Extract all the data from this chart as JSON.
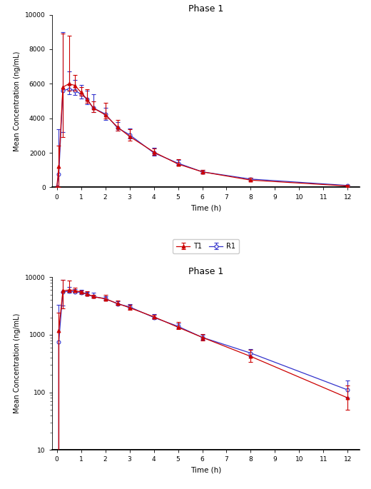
{
  "title": "Phase 1",
  "xlabel": "Time (h)",
  "ylabel": "Mean Concentration (ng/mL)",
  "time": [
    0,
    0.083,
    0.25,
    0.5,
    0.75,
    1.0,
    1.25,
    1.5,
    2.0,
    2.5,
    3.0,
    4.0,
    5.0,
    6.0,
    8.0,
    12.0
  ],
  "T1_mean": [
    0,
    1200,
    5800,
    6000,
    5900,
    5500,
    5100,
    4600,
    4200,
    3500,
    2950,
    2050,
    1350,
    900,
    420,
    80
  ],
  "T1_err_lo": [
    0,
    1200,
    2900,
    400,
    300,
    200,
    200,
    250,
    200,
    200,
    250,
    150,
    100,
    100,
    80,
    30
  ],
  "T1_err_hi": [
    0,
    1200,
    3100,
    2800,
    600,
    300,
    600,
    400,
    700,
    400,
    400,
    200,
    300,
    120,
    120,
    50
  ],
  "R1_mean": [
    0,
    750,
    5600,
    5700,
    5600,
    5400,
    5100,
    4600,
    4250,
    3450,
    3050,
    2000,
    1400,
    900,
    480,
    110
  ],
  "R1_err_lo": [
    0,
    750,
    2400,
    300,
    250,
    250,
    300,
    250,
    350,
    150,
    200,
    150,
    100,
    80,
    60,
    30
  ],
  "R1_err_hi": [
    0,
    2600,
    3400,
    1000,
    600,
    550,
    500,
    800,
    350,
    350,
    350,
    300,
    180,
    110,
    90,
    50
  ],
  "T1_color": "#cc0000",
  "R1_color": "#3333cc",
  "xticks": [
    0,
    1,
    2,
    3,
    4,
    5,
    6,
    7,
    8,
    9,
    10,
    11,
    12
  ],
  "ylim_linear": [
    0,
    10000
  ],
  "ylim_log": [
    10,
    10000
  ],
  "yticks_linear": [
    0,
    2000,
    4000,
    6000,
    8000,
    10000
  ],
  "background_color": "#ffffff",
  "legend_labels": [
    "T1",
    "R1"
  ]
}
